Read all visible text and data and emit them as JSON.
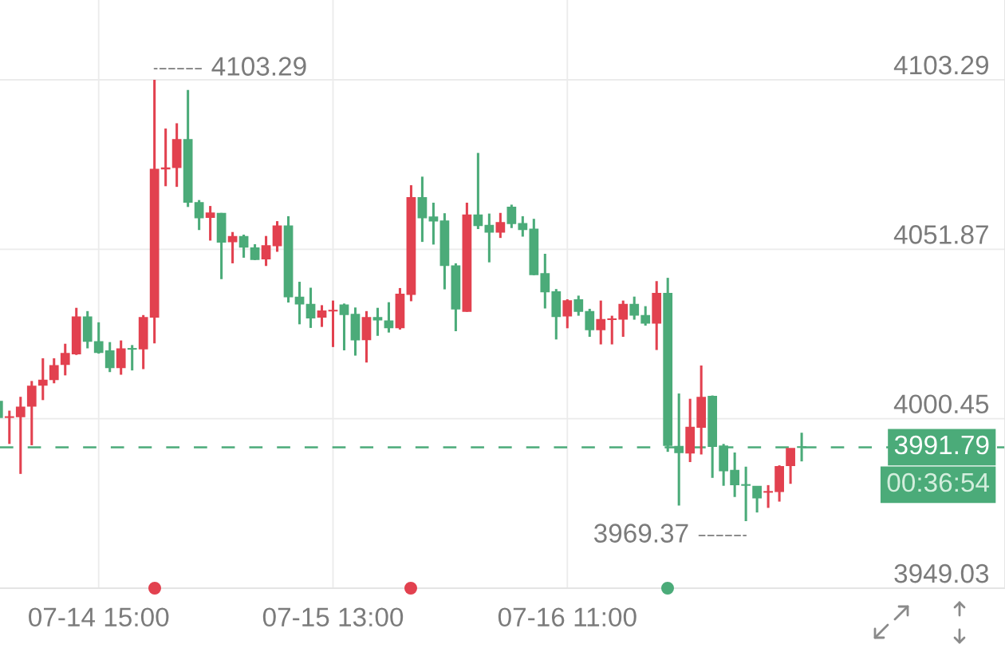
{
  "chart_data": {
    "type": "candlestick",
    "categories": [
      null,
      null,
      null,
      null,
      null,
      null,
      null,
      null,
      null,
      "07-14 15:00",
      null,
      null,
      null,
      null,
      null,
      null,
      null,
      null,
      null,
      null,
      null,
      null,
      null,
      null,
      null,
      null,
      null,
      null,
      null,
      null,
      "07-15 13:00",
      null,
      null,
      null,
      null,
      null,
      null,
      null,
      null,
      null,
      null,
      null,
      null,
      null,
      null,
      null,
      null,
      null,
      null,
      null,
      null,
      "07-16 11:00",
      null,
      null,
      null,
      null,
      null,
      null,
      null,
      null,
      null,
      null,
      null,
      null,
      null,
      null,
      null,
      null,
      null,
      null,
      null,
      null,
      null
    ],
    "ohlc": [
      [
        4005.7,
        4005.7,
        4000.9,
        4000.9
      ],
      [
        4000.9,
        4002.9,
        3992.8,
        4001.0
      ],
      [
        4001.1,
        4007.1,
        3983.7,
        4003.9
      ],
      [
        4004.3,
        4011.9,
        3992.4,
        4010.3
      ],
      [
        4010.7,
        4018.8,
        4006.1,
        4012.1
      ],
      [
        4012.4,
        4018.8,
        4011.2,
        4016.5
      ],
      [
        4017.0,
        4023.2,
        4013.6,
        4020.2
      ],
      [
        4020.2,
        4034.1,
        4019.8,
        4031.3
      ],
      [
        4031.3,
        4033.1,
        4021.8,
        4024.0
      ],
      [
        4023.8,
        4029.7,
        4020.2,
        4020.6
      ],
      [
        4021.0,
        4023.7,
        4014.6,
        4016.0
      ],
      [
        4016.0,
        4024.2,
        4013.8,
        4021.6
      ],
      [
        4021.7,
        4022.8,
        4015.1,
        4021.6
      ],
      [
        4021.7,
        4031.9,
        4015.5,
        4031.1
      ],
      [
        4031.3,
        4103.29,
        4023.3,
        4076.1
      ],
      [
        4076.3,
        4088.5,
        4071.0,
        4076.5
      ],
      [
        4076.7,
        4090.1,
        4070.8,
        4085.1
      ],
      [
        4085.1,
        4100.2,
        4064.7,
        4066.2
      ],
      [
        4066.0,
        4066.8,
        4057.7,
        4061.5
      ],
      [
        4061.6,
        4065.0,
        4054.5,
        4062.8
      ],
      [
        4062.7,
        4062.9,
        4042.8,
        4054.1
      ],
      [
        4054.2,
        4057.1,
        4047.6,
        4055.7
      ],
      [
        4055.7,
        4056.3,
        4049.3,
        4052.6
      ],
      [
        4052.2,
        4053.4,
        4048.6,
        4048.8
      ],
      [
        4049.0,
        4055.9,
        4046.8,
        4052.9
      ],
      [
        4053.0,
        4060.4,
        4051.1,
        4058.9
      ],
      [
        4058.9,
        4061.9,
        4035.7,
        4037.5
      ],
      [
        4037.3,
        4042.0,
        4029.1,
        4035.3
      ],
      [
        4035.1,
        4040.2,
        4028.0,
        4031.1
      ],
      [
        4031.3,
        4034.9,
        4028.3,
        4033.1
      ],
      [
        4033.2,
        4036.3,
        4022.2,
        4033.3
      ],
      [
        4034.9,
        4035.4,
        4021.2,
        4032.1
      ],
      [
        4032.1,
        4034.2,
        4019.6,
        4024.4
      ],
      [
        4024.5,
        4033.1,
        4017.5,
        4031.1
      ],
      [
        4031.1,
        4034.1,
        4025.6,
        4030.5
      ],
      [
        4030.1,
        4035.8,
        4026.6,
        4028.1
      ],
      [
        4028.1,
        4040.1,
        4027.5,
        4038.2
      ],
      [
        4038.2,
        4071.3,
        4036.1,
        4067.5
      ],
      [
        4067.5,
        4073.9,
        4054.1,
        4061.5
      ],
      [
        4061.6,
        4066.0,
        4053.3,
        4060.5
      ],
      [
        4060.4,
        4062.8,
        4039.7,
        4047.0
      ],
      [
        4046.8,
        4047.6,
        4027.0,
        4033.8
      ],
      [
        4033.1,
        4066.0,
        4032.9,
        4062.2
      ],
      [
        4062.2,
        4081.1,
        4058.0,
        4059.1
      ],
      [
        4059.1,
        4062.7,
        4047.9,
        4057.1
      ],
      [
        4057.1,
        4062.9,
        4055.3,
        4059.9
      ],
      [
        4064.6,
        4065.4,
        4058.3,
        4059.7
      ],
      [
        4059.6,
        4061.9,
        4055.7,
        4057.9
      ],
      [
        4057.9,
        4061.1,
        4044.0,
        4044.2
      ],
      [
        4044.4,
        4050.5,
        4033.9,
        4039.0
      ],
      [
        4038.9,
        4039.8,
        4024.5,
        4031.5
      ],
      [
        4031.7,
        4036.7,
        4027.9,
        4036.2
      ],
      [
        4036.5,
        4037.8,
        4031.7,
        4033.1
      ],
      [
        4032.9,
        4033.8,
        4025.3,
        4027.5
      ],
      [
        4027.5,
        4036.3,
        4023.0,
        4030.5
      ],
      [
        4030.6,
        4031.7,
        4023.0,
        4030.7
      ],
      [
        4030.7,
        4036.3,
        4025.3,
        4035.1
      ],
      [
        4035.1,
        4037.5,
        4030.5,
        4031.9
      ],
      [
        4031.7,
        4034.6,
        4028.7,
        4029.5
      ],
      [
        4029.5,
        4042.2,
        4021.3,
        4038.4
      ],
      [
        4038.4,
        4043.2,
        3990.4,
        3992.4
      ],
      [
        3992.0,
        4008.1,
        3974.1,
        3990.2
      ],
      [
        3990.1,
        4006.5,
        3987.3,
        3997.8
      ],
      [
        3997.9,
        4016.6,
        3989.6,
        4006.9
      ],
      [
        4007.2,
        4007.5,
        3982.5,
        3992.1
      ],
      [
        3992.1,
        3992.8,
        3980.1,
        3984.7
      ],
      [
        3984.7,
        3990.2,
        3976.7,
        3980.5
      ],
      [
        3980.4,
        3985.9,
        3969.37,
        3980.3
      ],
      [
        3979.9,
        3980.0,
        3972.0,
        3976.5
      ],
      [
        3978.2,
        3980.3,
        3973.4,
        3978.3
      ],
      [
        3978.4,
        3986.3,
        3975.3,
        3985.9
      ],
      [
        3986.3,
        3991.4,
        3980.7,
        3991.4
      ],
      [
        3991.9,
        3996.2,
        3987.5,
        3991.79
      ]
    ],
    "colors": [
      "#4bab79",
      "#e2414f",
      "#e2414f",
      "#e2414f",
      "#e2414f",
      "#e2414f",
      "#e2414f",
      "#e2414f",
      "#4bab79",
      "#4bab79",
      "#4bab79",
      "#e2414f",
      "#4bab79",
      "#e2414f",
      "#e2414f",
      "#e2414f",
      "#e2414f",
      "#4bab79",
      "#4bab79",
      "#e2414f",
      "#4bab79",
      "#e2414f",
      "#4bab79",
      "#4bab79",
      "#e2414f",
      "#e2414f",
      "#4bab79",
      "#4bab79",
      "#4bab79",
      "#e2414f",
      "#e2414f",
      "#4bab79",
      "#4bab79",
      "#e2414f",
      "#4bab79",
      "#4bab79",
      "#e2414f",
      "#e2414f",
      "#4bab79",
      "#4bab79",
      "#4bab79",
      "#4bab79",
      "#e2414f",
      "#4bab79",
      "#4bab79",
      "#e2414f",
      "#4bab79",
      "#4bab79",
      "#4bab79",
      "#4bab79",
      "#4bab79",
      "#e2414f",
      "#4bab79",
      "#4bab79",
      "#e2414f",
      "#e2414f",
      "#e2414f",
      "#4bab79",
      "#4bab79",
      "#e2414f",
      "#4bab79",
      "#4bab79",
      "#e2414f",
      "#e2414f",
      "#4bab79",
      "#4bab79",
      "#4bab79",
      "#4bab79",
      "#4bab79",
      "#e2414f",
      "#e2414f",
      "#e2414f",
      "#4bab79"
    ],
    "ylim": [
      3949.03,
      4127.5
    ],
    "yticks": [
      4103.29,
      4051.87,
      4000.45,
      3949.03
    ],
    "grid": true,
    "ref_lines": [
      {
        "axis": "y",
        "value": 3991.79,
        "label": "3991.79",
        "color": "#4bab79",
        "line_style": "dashed"
      }
    ],
    "annotations": [
      "4103.29",
      "3969.37",
      "00:36:54"
    ]
  }
}
